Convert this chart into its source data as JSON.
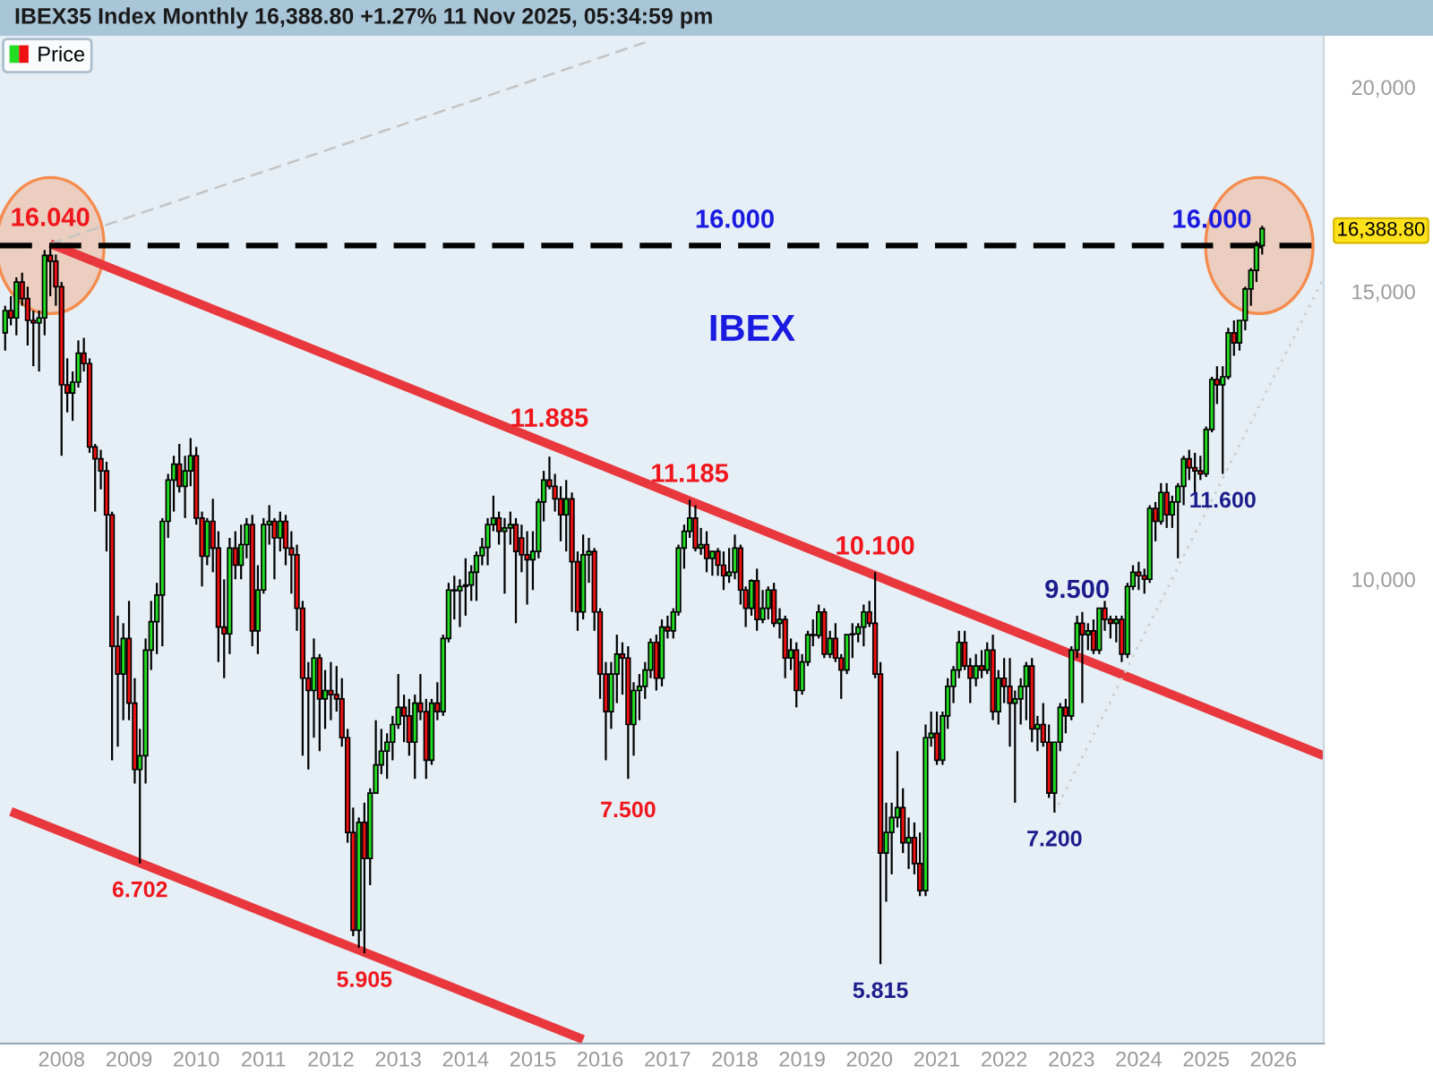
{
  "chart_data": {
    "type": "candlestick",
    "title": "IBEX35 Index Monthly 16,388.80 +1.27% 11 Nov 2025, 05:34:59 pm",
    "subtitle": "IBEX",
    "legend": "top left",
    "log": "y",
    "xlim": [
      "2007-02",
      "2026-10"
    ],
    "xticks": [
      "2008",
      "2009",
      "2010",
      "2011",
      "2012",
      "2013",
      "2014",
      "2015",
      "2016",
      "2017",
      "2018",
      "2019",
      "2020",
      "2021",
      "2022",
      "2023",
      "2024",
      "2025",
      "2026"
    ],
    "ylim": [
      5200,
      21500
    ],
    "yticks": [
      {
        "value": 10000,
        "label": "10,000"
      },
      {
        "value": 15000,
        "label": "15,000"
      },
      {
        "value": 20000,
        "label": "20,000"
      },
      {
        "value": 16388.8,
        "label": "16,388.80"
      }
    ],
    "ref_lines": [
      {
        "axis": "y",
        "value": 16000,
        "color": "#000000",
        "line_style": "dashed"
      }
    ],
    "annotations": [
      {
        "text": "16.040",
        "x": "2007-11",
        "y": 16040
      },
      {
        "text": "16.000",
        "x": "2018-01",
        "y": 16000
      },
      {
        "text": "16.000",
        "x": "2025-02",
        "y": 16000
      },
      {
        "text": "11.885",
        "x": "2015-04",
        "y": 11885
      },
      {
        "text": "11.185",
        "x": "2017-05",
        "y": 11185
      },
      {
        "text": "10.100",
        "x": "2020-02",
        "y": 10100
      },
      {
        "text": "9.500",
        "x": "2023-02",
        "y": 9500
      },
      {
        "text": "11.600",
        "x": "2025-04",
        "y": 11600
      },
      {
        "text": "7.500",
        "x": "2016-06",
        "y": 7500
      },
      {
        "text": "6.702",
        "x": "2009-03",
        "y": 6702
      },
      {
        "text": "5.905",
        "x": "2012-07",
        "y": 5905
      },
      {
        "text": "5.815",
        "x": "2020-03",
        "y": 5815
      },
      {
        "text": "7.200",
        "x": "2022-10",
        "y": 7200
      }
    ],
    "series": [
      {
        "type": "line",
        "x": [
          "2007-11",
          "2026-10"
        ],
        "values": [
          16040,
          7800
        ],
        "color": "#e8383d",
        "line_style": "solid"
      },
      {
        "type": "line",
        "x": [
          "2007-04",
          "2015-10"
        ],
        "values": [
          7210,
          5230
        ],
        "color": "#e8383d",
        "line_style": "solid"
      },
      {
        "type": "line",
        "x": [
          "2007-11",
          "2016-09"
        ],
        "values": [
          16040,
          21300
        ],
        "color": "#c4c4c4",
        "line_style": "dashed"
      },
      {
        "type": "line",
        "x": [
          "2022-10",
          "2026-10"
        ],
        "values": [
          7200,
          15290
        ],
        "color": "#cdcdcd",
        "line_style": "dotted"
      },
      {
        "name": "Price",
        "x": [
          "2007-03",
          "2007-04",
          "2007-05",
          "2007-06",
          "2007-07",
          "2007-08",
          "2007-09",
          "2007-10",
          "2007-11",
          "2007-12",
          "2008-01",
          "2008-02",
          "2008-03",
          "2008-04",
          "2008-05",
          "2008-06",
          "2008-07",
          "2008-08",
          "2008-09",
          "2008-10",
          "2008-11",
          "2008-12",
          "2009-01",
          "2009-02",
          "2009-03",
          "2009-04",
          "2009-05",
          "2009-06",
          "2009-07",
          "2009-08",
          "2009-09",
          "2009-10",
          "2009-11",
          "2009-12",
          "2010-01",
          "2010-02",
          "2010-03",
          "2010-04",
          "2010-05",
          "2010-06",
          "2010-07",
          "2010-08",
          "2010-09",
          "2010-10",
          "2010-11",
          "2010-12",
          "2011-01",
          "2011-02",
          "2011-03",
          "2011-04",
          "2011-05",
          "2011-06",
          "2011-07",
          "2011-08",
          "2011-09",
          "2011-10",
          "2011-11",
          "2011-12",
          "2012-01",
          "2012-02",
          "2012-03",
          "2012-04",
          "2012-05",
          "2012-06",
          "2012-07",
          "2012-08",
          "2012-09",
          "2012-10",
          "2012-11",
          "2012-12",
          "2013-01",
          "2013-02",
          "2013-03",
          "2013-04",
          "2013-05",
          "2013-06",
          "2013-07",
          "2013-08",
          "2013-09",
          "2013-10",
          "2013-11",
          "2013-12",
          "2014-01",
          "2014-02",
          "2014-03",
          "2014-04",
          "2014-05",
          "2014-06",
          "2014-07",
          "2014-08",
          "2014-09",
          "2014-10",
          "2014-11",
          "2014-12",
          "2015-01",
          "2015-02",
          "2015-03",
          "2015-04",
          "2015-05",
          "2015-06",
          "2015-07",
          "2015-08",
          "2015-09",
          "2015-10",
          "2015-11",
          "2015-12",
          "2016-01",
          "2016-02",
          "2016-03",
          "2016-04",
          "2016-05",
          "2016-06",
          "2016-07",
          "2016-08",
          "2016-09",
          "2016-10",
          "2016-11",
          "2016-12",
          "2017-01",
          "2017-02",
          "2017-03",
          "2017-04",
          "2017-05",
          "2017-06",
          "2017-07",
          "2017-08",
          "2017-09",
          "2017-10",
          "2017-11",
          "2017-12",
          "2018-01",
          "2018-02",
          "2018-03",
          "2018-04",
          "2018-05",
          "2018-06",
          "2018-07",
          "2018-08",
          "2018-09",
          "2018-10",
          "2018-11",
          "2018-12",
          "2019-01",
          "2019-02",
          "2019-03",
          "2019-04",
          "2019-05",
          "2019-06",
          "2019-07",
          "2019-08",
          "2019-09",
          "2019-10",
          "2019-11",
          "2019-12",
          "2020-01",
          "2020-02",
          "2020-03",
          "2020-04",
          "2020-05",
          "2020-06",
          "2020-07",
          "2020-08",
          "2020-09",
          "2020-10",
          "2020-11",
          "2020-12",
          "2021-01",
          "2021-02",
          "2021-03",
          "2021-04",
          "2021-05",
          "2021-06",
          "2021-07",
          "2021-08",
          "2021-09",
          "2021-10",
          "2021-11",
          "2021-12",
          "2022-01",
          "2022-02",
          "2022-03",
          "2022-04",
          "2022-05",
          "2022-06",
          "2022-07",
          "2022-08",
          "2022-09",
          "2022-10",
          "2022-11",
          "2022-12",
          "2023-01",
          "2023-02",
          "2023-03",
          "2023-04",
          "2023-05",
          "2023-06",
          "2023-07",
          "2023-08",
          "2023-09",
          "2023-10",
          "2023-11",
          "2023-12",
          "2024-01",
          "2024-02",
          "2024-03",
          "2024-04",
          "2024-05",
          "2024-06",
          "2024-07",
          "2024-08",
          "2024-09",
          "2024-10",
          "2024-11",
          "2024-12",
          "2025-01",
          "2025-02",
          "2025-03",
          "2025-04",
          "2025-05",
          "2025-06",
          "2025-07",
          "2025-08",
          "2025-09",
          "2025-10",
          "2025-11"
        ],
        "ohlc": [
          [
            14150,
            14700,
            13800,
            14600
          ],
          [
            14600,
            14900,
            14300,
            14450
          ],
          [
            14450,
            15300,
            14100,
            15200
          ],
          [
            15200,
            15400,
            14700,
            14850
          ],
          [
            14850,
            15100,
            13900,
            14400
          ],
          [
            14400,
            14600,
            13500,
            14350
          ],
          [
            14350,
            14600,
            13400,
            14450
          ],
          [
            14450,
            15900,
            14100,
            15780
          ],
          [
            15780,
            16040,
            14900,
            15650
          ],
          [
            15650,
            15800,
            14700,
            15100
          ],
          [
            15100,
            15200,
            11900,
            13150
          ],
          [
            13150,
            13650,
            12650,
            13000
          ],
          [
            13000,
            13400,
            12500,
            13200
          ],
          [
            13200,
            14000,
            13100,
            13750
          ],
          [
            13750,
            14050,
            13400,
            13550
          ],
          [
            13550,
            13650,
            11950,
            12050
          ],
          [
            12050,
            12100,
            11000,
            11850
          ],
          [
            11850,
            12000,
            11350,
            11650
          ],
          [
            11650,
            11800,
            10400,
            10950
          ],
          [
            10950,
            11000,
            7750,
            9100
          ],
          [
            9100,
            9500,
            7900,
            8750
          ],
          [
            8750,
            9400,
            8200,
            9200
          ],
          [
            9200,
            9700,
            8200,
            8400
          ],
          [
            8400,
            8700,
            7500,
            7650
          ],
          [
            7650,
            8100,
            6702,
            7800
          ],
          [
            7800,
            9200,
            7500,
            9050
          ],
          [
            9050,
            9700,
            8800,
            9420
          ],
          [
            9420,
            9950,
            9000,
            9780
          ],
          [
            9780,
            10900,
            9100,
            10850
          ],
          [
            10850,
            11600,
            10600,
            11500
          ],
          [
            11500,
            11900,
            11000,
            11760
          ],
          [
            11760,
            12100,
            11300,
            11400
          ],
          [
            11400,
            11900,
            10900,
            11650
          ],
          [
            11650,
            12200,
            11400,
            11900
          ],
          [
            11900,
            12050,
            10800,
            10900
          ],
          [
            10900,
            11000,
            9900,
            10330
          ],
          [
            10330,
            10900,
            10200,
            10850
          ],
          [
            10850,
            11200,
            10100,
            10450
          ],
          [
            10450,
            10700,
            8900,
            9350
          ],
          [
            9350,
            10000,
            8700,
            9260
          ],
          [
            9260,
            10600,
            9000,
            10450
          ],
          [
            10450,
            10700,
            10000,
            10200
          ],
          [
            10200,
            10800,
            10000,
            10500
          ],
          [
            10500,
            10900,
            10300,
            10800
          ],
          [
            10800,
            10950,
            9100,
            9300
          ],
          [
            9300,
            10200,
            9000,
            9850
          ],
          [
            9850,
            10900,
            9800,
            10800
          ],
          [
            10800,
            11100,
            10500,
            10850
          ],
          [
            10850,
            10900,
            10000,
            10600
          ],
          [
            10600,
            11000,
            10400,
            10850
          ],
          [
            10850,
            10950,
            10200,
            10450
          ],
          [
            10450,
            10700,
            9800,
            10350
          ],
          [
            10350,
            10500,
            9300,
            9600
          ],
          [
            9600,
            9700,
            7800,
            8700
          ],
          [
            8700,
            8900,
            7650,
            8550
          ],
          [
            8550,
            9200,
            8000,
            8950
          ],
          [
            8950,
            9000,
            7850,
            8450
          ],
          [
            8450,
            8800,
            8100,
            8550
          ],
          [
            8550,
            8900,
            8200,
            8500
          ],
          [
            8500,
            8850,
            8300,
            8450
          ],
          [
            8450,
            8700,
            7900,
            8000
          ],
          [
            8000,
            8100,
            6900,
            7000
          ],
          [
            7000,
            7250,
            6050,
            6100
          ],
          [
            6100,
            7150,
            5950,
            7100
          ],
          [
            7100,
            7300,
            5905,
            6750
          ],
          [
            6750,
            7450,
            6500,
            7400
          ],
          [
            7400,
            8200,
            7400,
            7700
          ],
          [
            7700,
            8100,
            7600,
            7850
          ],
          [
            7850,
            8050,
            7550,
            7950
          ],
          [
            7950,
            8250,
            7750,
            8150
          ],
          [
            8150,
            8750,
            8100,
            8350
          ],
          [
            8350,
            8500,
            7950,
            8250
          ],
          [
            8250,
            8450,
            7800,
            7950
          ],
          [
            7950,
            8500,
            7550,
            8400
          ],
          [
            8400,
            8750,
            8200,
            8300
          ],
          [
            8300,
            8450,
            7550,
            7750
          ],
          [
            7750,
            8450,
            7700,
            8400
          ],
          [
            8400,
            8650,
            8200,
            8300
          ],
          [
            8300,
            9250,
            8250,
            9200
          ],
          [
            9200,
            9950,
            9150,
            9850
          ],
          [
            9850,
            10050,
            9450,
            9840
          ],
          [
            9840,
            10000,
            9350,
            9900
          ],
          [
            9900,
            10300,
            9500,
            9920
          ],
          [
            9920,
            10200,
            9700,
            10100
          ],
          [
            10100,
            10400,
            9700,
            10340
          ],
          [
            10340,
            10600,
            10200,
            10460
          ],
          [
            10460,
            10900,
            10200,
            10800
          ],
          [
            10800,
            11250,
            10700,
            10900
          ],
          [
            10900,
            11000,
            10500,
            10700
          ],
          [
            10700,
            10900,
            9800,
            10750
          ],
          [
            10750,
            11000,
            10500,
            10800
          ],
          [
            10800,
            10900,
            9400,
            10400
          ],
          [
            10600,
            10800,
            10100,
            10350
          ],
          [
            10350,
            10700,
            9650,
            10280
          ],
          [
            10280,
            10700,
            9850,
            10400
          ],
          [
            10400,
            11200,
            10300,
            11150
          ],
          [
            11150,
            11650,
            10850,
            11500
          ],
          [
            11500,
            11885,
            11350,
            11400
          ],
          [
            11400,
            11600,
            11000,
            11200
          ],
          [
            11200,
            11400,
            10550,
            10950
          ],
          [
            10950,
            11500,
            10400,
            11200
          ],
          [
            11200,
            11300,
            9550,
            10250
          ],
          [
            10250,
            10400,
            9300,
            9550
          ],
          [
            9550,
            10650,
            9450,
            10350
          ],
          [
            10350,
            10600,
            9950,
            10400
          ],
          [
            10400,
            10450,
            9300,
            9550
          ],
          [
            9550,
            9600,
            8450,
            8750
          ],
          [
            8750,
            8900,
            7750,
            8300
          ],
          [
            8300,
            8900,
            8100,
            8750
          ],
          [
            8750,
            9250,
            8400,
            9000
          ],
          [
            9000,
            9150,
            8500,
            8950
          ],
          [
            8950,
            9100,
            7550,
            8150
          ],
          [
            8150,
            8650,
            7800,
            8550
          ],
          [
            8550,
            8750,
            8200,
            8600
          ],
          [
            8600,
            8900,
            8450,
            8800
          ],
          [
            8800,
            9200,
            8700,
            9150
          ],
          [
            9150,
            9250,
            8550,
            8700
          ],
          [
            8700,
            9450,
            8600,
            9350
          ],
          [
            9350,
            9500,
            9200,
            9300
          ],
          [
            9300,
            9600,
            9200,
            9550
          ],
          [
            9550,
            10500,
            9500,
            10450
          ],
          [
            10450,
            10800,
            10150,
            10700
          ],
          [
            10700,
            11185,
            10600,
            10900
          ],
          [
            10900,
            11100,
            10400,
            10450
          ],
          [
            10450,
            10750,
            10350,
            10500
          ],
          [
            10500,
            10700,
            10100,
            10300
          ],
          [
            10300,
            10400,
            10050,
            10400
          ],
          [
            10400,
            10450,
            10050,
            10200
          ],
          [
            10200,
            10400,
            9850,
            10050
          ],
          [
            10050,
            10450,
            9950,
            10100
          ],
          [
            10100,
            10650,
            10000,
            10450
          ],
          [
            10450,
            10500,
            9650,
            9850
          ],
          [
            9850,
            9900,
            9350,
            9600
          ],
          [
            9600,
            10000,
            9500,
            9980
          ],
          [
            9980,
            10150,
            9300,
            9450
          ],
          [
            9450,
            9850,
            9400,
            9600
          ],
          [
            9600,
            9900,
            9450,
            9850
          ],
          [
            9850,
            9950,
            9350,
            9400
          ],
          [
            9400,
            9600,
            9200,
            9450
          ],
          [
            9450,
            9500,
            8700,
            8950
          ],
          [
            8950,
            9200,
            8800,
            9050
          ],
          [
            9050,
            9150,
            8350,
            8550
          ],
          [
            8550,
            9000,
            8500,
            8900
          ],
          [
            8900,
            9300,
            8850,
            9250
          ],
          [
            9250,
            9450,
            9100,
            9240
          ],
          [
            9240,
            9650,
            9200,
            9550
          ],
          [
            9550,
            9600,
            8950,
            9000
          ],
          [
            9000,
            9300,
            8950,
            9200
          ],
          [
            9200,
            9400,
            8900,
            8950
          ],
          [
            8950,
            9000,
            8450,
            8800
          ],
          [
            8800,
            9250,
            8750,
            9250
          ],
          [
            9250,
            9400,
            8950,
            9260
          ],
          [
            9260,
            9400,
            9150,
            9350
          ],
          [
            9350,
            9650,
            9100,
            9550
          ],
          [
            9550,
            9700,
            9350,
            9400
          ],
          [
            9400,
            10100,
            8700,
            8750
          ],
          [
            8750,
            8900,
            5815,
            6800
          ],
          [
            6800,
            7300,
            6350,
            7000
          ],
          [
            7000,
            7300,
            6600,
            7150
          ],
          [
            7150,
            7850,
            7050,
            7250
          ],
          [
            7250,
            7450,
            6800,
            6900
          ],
          [
            6900,
            7150,
            6650,
            6950
          ],
          [
            6950,
            7100,
            6600,
            6700
          ],
          [
            6700,
            7000,
            6400,
            6450
          ],
          [
            6450,
            8150,
            6400,
            8000
          ],
          [
            8000,
            8300,
            7900,
            8050
          ],
          [
            8050,
            8300,
            7700,
            7750
          ],
          [
            7750,
            8300,
            7700,
            8250
          ],
          [
            8250,
            8700,
            8100,
            8600
          ],
          [
            8600,
            8850,
            8400,
            8800
          ],
          [
            8800,
            9300,
            8700,
            9150
          ],
          [
            9150,
            9300,
            8800,
            8850
          ],
          [
            8850,
            8950,
            8400,
            8700
          ],
          [
            8700,
            9000,
            8600,
            8850
          ],
          [
            8850,
            9050,
            8700,
            8800
          ],
          [
            8800,
            9150,
            8750,
            9050
          ],
          [
            9050,
            9250,
            8200,
            8300
          ],
          [
            8300,
            8800,
            8150,
            8700
          ],
          [
            8700,
            8950,
            8400,
            8600
          ],
          [
            8600,
            8950,
            7900,
            8400
          ],
          [
            8400,
            8550,
            7300,
            8450
          ],
          [
            8450,
            8700,
            8150,
            8600
          ],
          [
            8600,
            8900,
            8200,
            8850
          ],
          [
            8850,
            8950,
            7950,
            8100
          ],
          [
            8100,
            8250,
            7850,
            8150
          ],
          [
            8150,
            8400,
            7900,
            7950
          ],
          [
            7950,
            8150,
            7350,
            7400
          ],
          [
            7400,
            7950,
            7200,
            7950
          ],
          [
            7950,
            8400,
            7850,
            8350
          ],
          [
            8350,
            8450,
            8050,
            8250
          ],
          [
            8250,
            9100,
            8200,
            9050
          ],
          [
            9050,
            9500,
            8950,
            9400
          ],
          [
            9400,
            9550,
            8400,
            9250
          ],
          [
            9250,
            9400,
            9050,
            9300
          ],
          [
            9300,
            9450,
            9000,
            9050
          ],
          [
            9050,
            9600,
            9000,
            9600
          ],
          [
            9600,
            9700,
            9300,
            9450
          ],
          [
            9450,
            9500,
            9200,
            9400
          ],
          [
            9400,
            9500,
            9150,
            9450
          ],
          [
            9450,
            9500,
            8900,
            9000
          ],
          [
            9000,
            9950,
            8950,
            9900
          ],
          [
            9900,
            10200,
            9850,
            10100
          ],
          [
            10100,
            10250,
            9850,
            10050
          ],
          [
            10050,
            10150,
            9800,
            10000
          ],
          [
            10000,
            11100,
            9950,
            11050
          ],
          [
            11050,
            11150,
            10550,
            10850
          ],
          [
            10850,
            11450,
            10800,
            11300
          ],
          [
            11300,
            11450,
            10750,
            10950
          ],
          [
            10950,
            11250,
            10750,
            11150
          ],
          [
            11150,
            11450,
            10300,
            11400
          ],
          [
            11400,
            11900,
            11100,
            11850
          ],
          [
            11850,
            12000,
            11500,
            11700
          ],
          [
            11700,
            11950,
            11300,
            11650
          ],
          [
            11650,
            11900,
            11500,
            11600
          ],
          [
            11600,
            12400,
            11550,
            12350
          ],
          [
            12350,
            13300,
            12300,
            13250
          ],
          [
            13250,
            13500,
            12800,
            13150
          ],
          [
            13150,
            13500,
            11600,
            13300
          ],
          [
            13300,
            14250,
            13250,
            14150
          ],
          [
            14150,
            14400,
            13700,
            13950
          ],
          [
            13950,
            14400,
            13800,
            14400
          ],
          [
            14400,
            15100,
            14200,
            15050
          ],
          [
            15050,
            15500,
            14700,
            15450
          ],
          [
            15450,
            16100,
            15200,
            16000
          ],
          [
            16000,
            16450,
            15800,
            16388.8
          ]
        ],
        "colors": [
          "#22dd22",
          "#ee1111",
          "#22dd22",
          "#ee1111",
          "#ee1111",
          "#ee1111",
          "#22dd22",
          "#22dd22",
          "#ee1111",
          "#ee1111",
          "#ee1111",
          "#ee1111",
          "#22dd22",
          "#22dd22",
          "#ee1111",
          "#ee1111",
          "#ee1111",
          "#ee1111",
          "#ee1111",
          "#ee1111",
          "#ee1111",
          "#22dd22",
          "#ee1111",
          "#ee1111",
          "#22dd22",
          "#22dd22",
          "#22dd22",
          "#22dd22",
          "#22dd22",
          "#22dd22",
          "#22dd22",
          "#ee1111",
          "#22dd22",
          "#22dd22",
          "#ee1111",
          "#ee1111",
          "#22dd22",
          "#ee1111",
          "#ee1111",
          "#ee1111",
          "#22dd22",
          "#ee1111",
          "#22dd22",
          "#22dd22",
          "#ee1111",
          "#22dd22",
          "#22dd22",
          "#22dd22",
          "#ee1111",
          "#22dd22",
          "#ee1111",
          "#ee1111",
          "#ee1111",
          "#ee1111",
          "#ee1111",
          "#22dd22",
          "#ee1111",
          "#22dd22",
          "#ee1111",
          "#ee1111",
          "#ee1111",
          "#ee1111",
          "#ee1111",
          "#22dd22",
          "#ee1111",
          "#22dd22",
          "#22dd22",
          "#22dd22",
          "#22dd22",
          "#22dd22",
          "#22dd22",
          "#ee1111",
          "#ee1111",
          "#22dd22",
          "#ee1111",
          "#ee1111",
          "#22dd22",
          "#ee1111",
          "#22dd22",
          "#22dd22",
          "#ee1111",
          "#22dd22",
          "#22dd22",
          "#22dd22",
          "#22dd22",
          "#22dd22",
          "#22dd22",
          "#22dd22",
          "#ee1111",
          "#22dd22",
          "#22dd22",
          "#ee1111",
          "#ee1111",
          "#ee1111",
          "#22dd22",
          "#22dd22",
          "#22dd22",
          "#ee1111",
          "#ee1111",
          "#ee1111",
          "#22dd22",
          "#ee1111",
          "#ee1111",
          "#22dd22",
          "#22dd22",
          "#ee1111",
          "#ee1111",
          "#ee1111",
          "#22dd22",
          "#22dd22",
          "#ee1111",
          "#ee1111",
          "#22dd22",
          "#22dd22",
          "#22dd22",
          "#22dd22",
          "#ee1111",
          "#22dd22",
          "#ee1111",
          "#22dd22",
          "#22dd22",
          "#22dd22",
          "#22dd22",
          "#ee1111",
          "#22dd22",
          "#ee1111",
          "#22dd22",
          "#ee1111",
          "#ee1111",
          "#22dd22",
          "#22dd22",
          "#ee1111",
          "#ee1111",
          "#22dd22",
          "#ee1111",
          "#22dd22",
          "#22dd22",
          "#ee1111",
          "#22dd22",
          "#ee1111",
          "#22dd22",
          "#ee1111",
          "#22dd22",
          "#22dd22",
          "#ee1111",
          "#22dd22",
          "#ee1111",
          "#22dd22",
          "#ee1111",
          "#ee1111",
          "#22dd22",
          "#22dd22",
          "#22dd22",
          "#22dd22",
          "#ee1111",
          "#ee1111",
          "#ee1111",
          "#22dd22",
          "#22dd22",
          "#22dd22",
          "#ee1111",
          "#22dd22",
          "#ee1111",
          "#ee1111",
          "#22dd22",
          "#22dd22",
          "#ee1111",
          "#22dd22",
          "#22dd22",
          "#22dd22",
          "#22dd22",
          "#ee1111",
          "#ee1111",
          "#22dd22",
          "#ee1111",
          "#22dd22",
          "#ee1111",
          "#22dd22",
          "#ee1111",
          "#ee1111",
          "#22dd22",
          "#22dd22",
          "#22dd22",
          "#ee1111",
          "#22dd22",
          "#ee1111",
          "#ee1111",
          "#22dd22",
          "#22dd22",
          "#ee1111",
          "#22dd22",
          "#22dd22",
          "#ee1111",
          "#22dd22",
          "#ee1111",
          "#22dd22",
          "#ee1111",
          "#ee1111",
          "#22dd22",
          "#ee1111",
          "#22dd22",
          "#22dd22",
          "#ee1111",
          "#ee1111",
          "#22dd22",
          "#ee1111",
          "#22dd22",
          "#ee1111",
          "#22dd22",
          "#22dd22",
          "#22dd22",
          "#ee1111",
          "#ee1111",
          "#ee1111",
          "#22dd22",
          "#22dd22",
          "#ee1111",
          "#22dd22",
          "#22dd22",
          "#ee1111",
          "#22dd22",
          "#22dd22",
          "#22dd22",
          "#22dd22",
          "#22dd22"
        ]
      }
    ]
  }
}
